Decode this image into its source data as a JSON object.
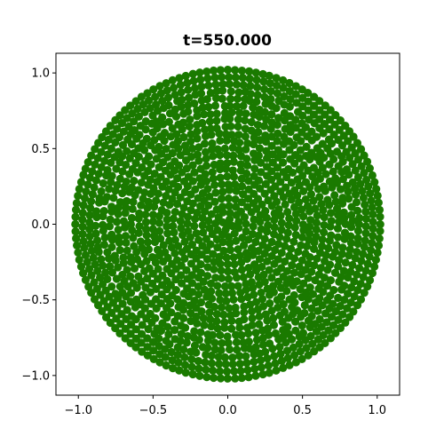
{
  "chart_data": {
    "type": "scatter",
    "title": "t=550.000",
    "xlabel": "",
    "ylabel": "",
    "xlim": [
      -1.15,
      1.15
    ],
    "ylim": [
      -1.13,
      1.13
    ],
    "grid": false,
    "x_ticks": [
      -1.0,
      -0.5,
      0.0,
      0.5,
      1.0
    ],
    "y_ticks": [
      -1.0,
      -0.5,
      0.0,
      0.5,
      1.0
    ],
    "x_tick_labels": [
      "−1.0",
      "−0.5",
      "0.0",
      "0.5",
      "1.0"
    ],
    "y_tick_labels": [
      "−1.0",
      "−0.5",
      "0.0",
      "0.5",
      "1.0"
    ],
    "series": [
      {
        "name": "particles",
        "color": "#1a7a00",
        "distribution": "disk",
        "center": [
          0.0,
          0.0
        ],
        "radius": 1.02,
        "approx_count": 1500
      }
    ]
  }
}
